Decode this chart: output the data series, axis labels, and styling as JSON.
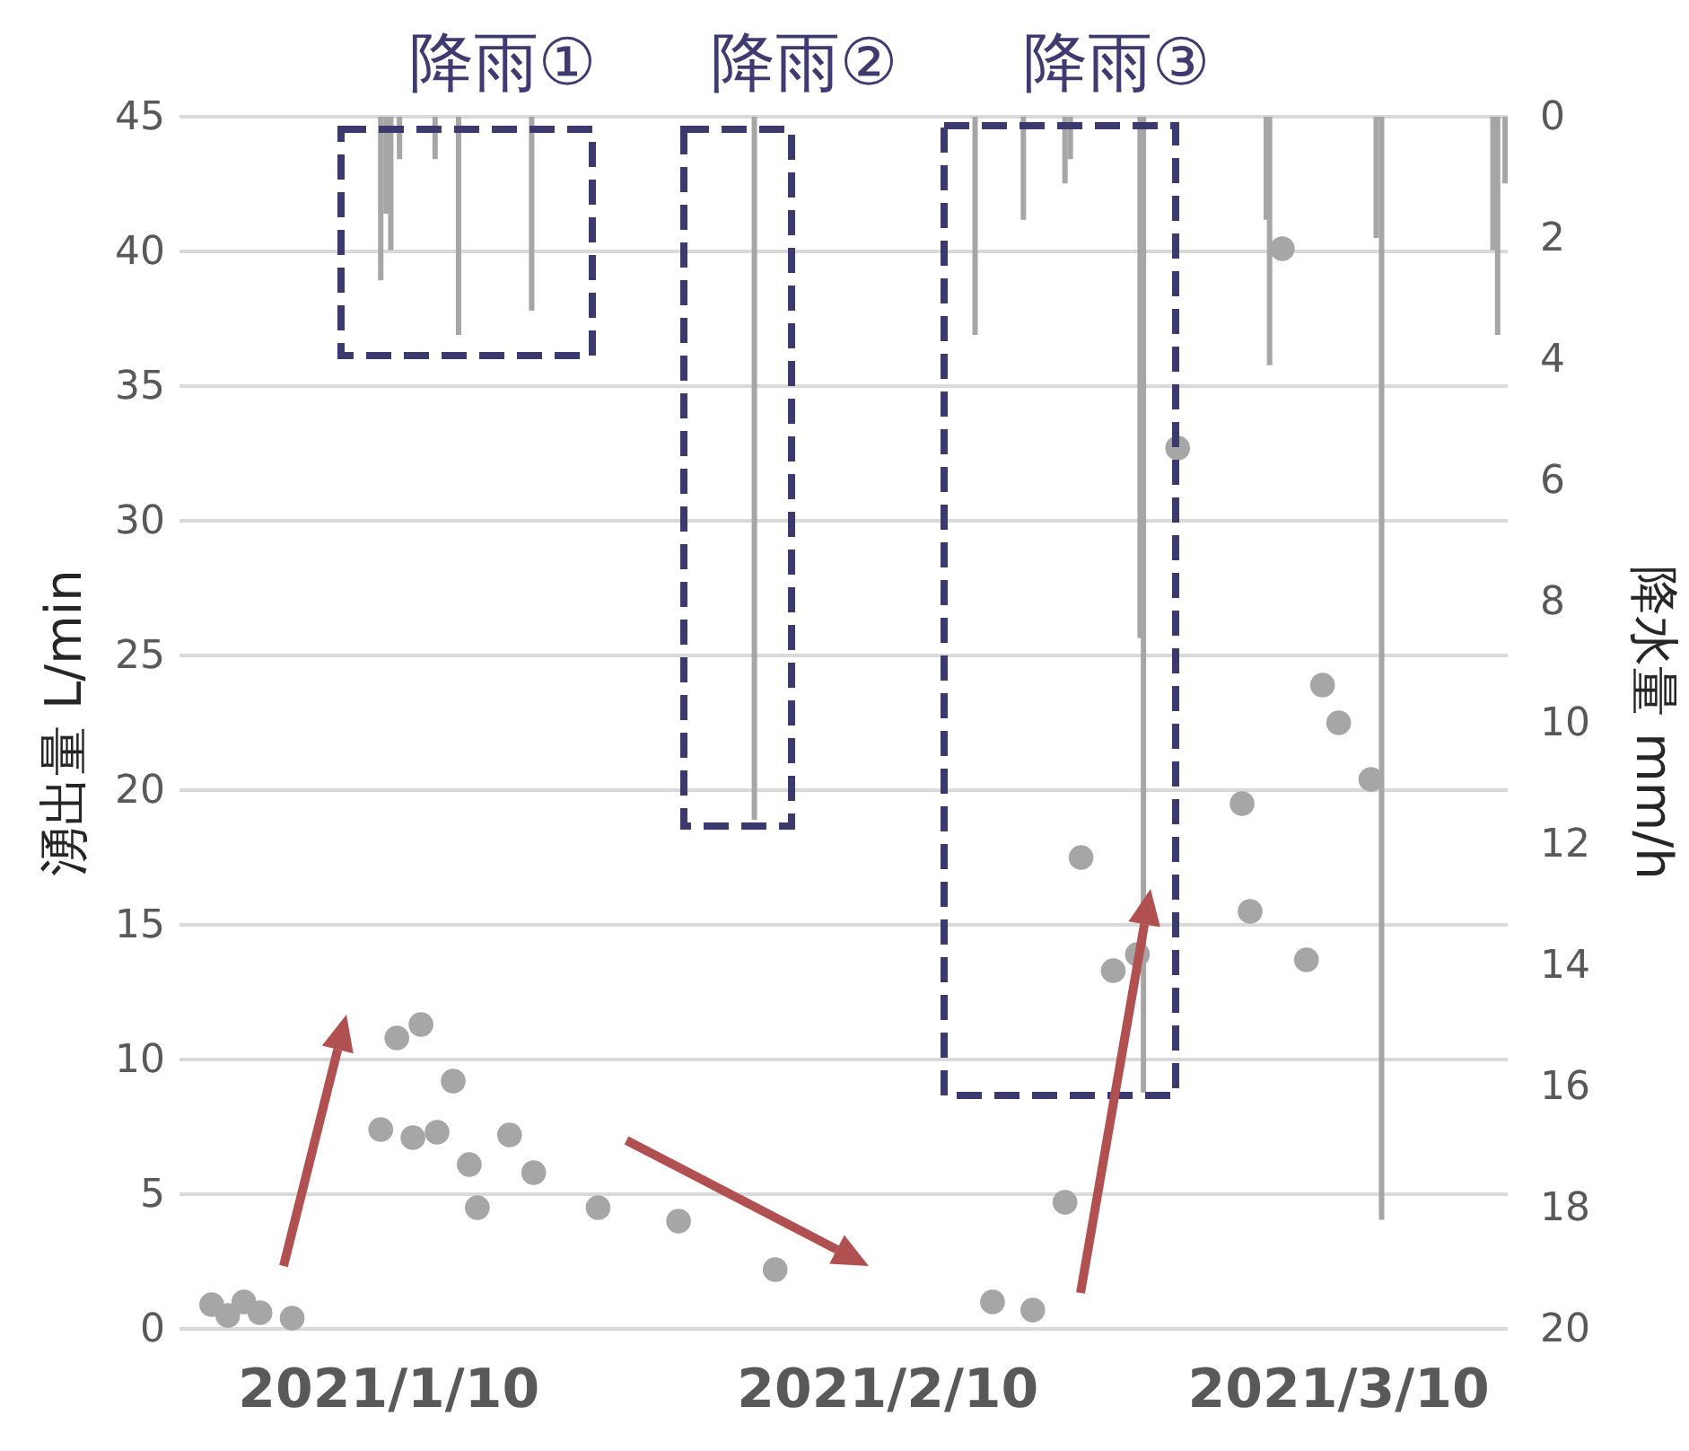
{
  "chart_data": {
    "type": "scatter",
    "ylabel": "湧出量 L/min",
    "y2label": "降水量 mm/h",
    "xlim": [
      "2020-12-28",
      "2021-03-20T12:00"
    ],
    "xticks": [
      {
        "value": "2021-01-10",
        "label": "2021/1/10"
      },
      {
        "value": "2021-02-10",
        "label": "2021/2/10"
      },
      {
        "value": "2021-03-10",
        "label": "2021/3/10"
      }
    ],
    "ylim": [
      0,
      45
    ],
    "yticks": [
      0,
      5,
      10,
      15,
      20,
      25,
      30,
      35,
      40,
      45
    ],
    "y2lim": [
      20,
      0
    ],
    "y2ticks": [
      0,
      2,
      4,
      6,
      8,
      10,
      12,
      14,
      16,
      18,
      20
    ],
    "grid": "y",
    "marker": "circle",
    "annotations": [
      "降雨①",
      "降雨②",
      "降雨③"
    ],
    "series": [
      {
        "type": "bar",
        "axis": "y2",
        "color": "#a6a6a6",
        "x": [
          "2021-01-09T12:00",
          "2021-01-09T20:00",
          "2021-01-10T03:00",
          "2021-01-10T16:00",
          "2021-01-12T21:00",
          "2021-01-14T08:00",
          "2021-01-18T21:00",
          "2021-02-01T17:00",
          "2021-02-15T10:00",
          "2021-02-18T10:00",
          "2021-02-21T00:00",
          "2021-02-21T08:00",
          "2021-02-25T16:00",
          "2021-02-25T21:00",
          "2021-03-05T12:00",
          "2021-03-05T17:00",
          "2021-03-12T08:00",
          "2021-03-12T16:00",
          "2021-03-19T14:00",
          "2021-03-19T21:00",
          "2021-03-20T08:00"
        ],
        "values": [
          2.7,
          1.6,
          2.2,
          0.7,
          0.7,
          3.6,
          3.2,
          11.6,
          3.6,
          1.7,
          1.1,
          0.7,
          8.6,
          16.1,
          1.7,
          4.1,
          2.0,
          18.2,
          2.2,
          3.6,
          1.1
        ]
      },
      {
        "color": "#a6a6a6",
        "x": [
          "2020-12-30",
          "2020-12-31",
          "2021-01-01",
          "2021-01-02",
          "2021-01-04",
          "2021-01-09T12:00",
          "2021-01-10T12:00",
          "2021-01-12",
          "2021-01-11T12:00",
          "2021-01-13",
          "2021-01-14",
          "2021-01-15",
          "2021-01-15T12:00",
          "2021-01-17T12:00",
          "2021-01-19",
          "2021-01-23",
          "2021-01-28",
          "2021-02-03",
          "2021-02-16T12:00",
          "2021-02-19",
          "2021-02-21",
          "2021-02-22",
          "2021-02-24",
          "2021-02-25T12:00",
          "2021-02-28",
          "2021-03-04",
          "2021-03-04T12:00",
          "2021-03-06T12:00",
          "2021-03-08",
          "2021-03-09",
          "2021-03-10",
          "2021-03-12"
        ],
        "values": [
          0.9,
          0.5,
          1.0,
          0.6,
          0.4,
          7.4,
          10.8,
          11.3,
          7.1,
          7.3,
          9.2,
          6.1,
          4.5,
          7.2,
          5.8,
          4.5,
          4.0,
          2.2,
          1.0,
          0.7,
          4.7,
          17.5,
          13.3,
          13.9,
          32.7,
          19.5,
          15.5,
          40.1,
          13.7,
          23.9,
          22.5,
          20.4
        ]
      }
    ]
  }
}
